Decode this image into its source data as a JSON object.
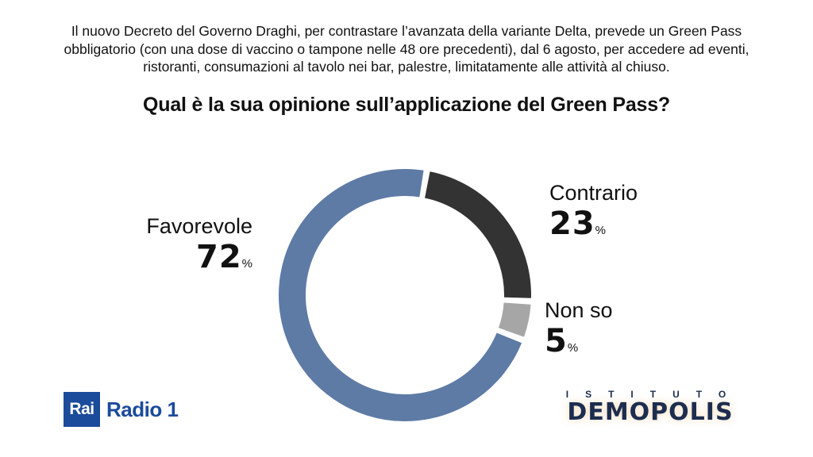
{
  "intro_lines": [
    "Il nuovo Decreto del Governo Draghi, per contrastare l’avanzata della variante Delta, prevede un Green Pass",
    "obbligatorio (con una dose di vaccino o tampone nelle 48 ore precedenti), dal 6 agosto, per accedere ad eventi,",
    "ristoranti, consumazioni al tavolo nei bar, palestre, limitatamente alle attività al chiuso."
  ],
  "question": "Qual è la sua opinione sull’applicazione del Green Pass?",
  "chart_data": {
    "type": "pie",
    "style": "donut",
    "title": "Qual è la sua opinione sull’applicazione del Green Pass?",
    "categories": [
      "Favorevole",
      "Contrario",
      "Non so"
    ],
    "values": [
      72,
      23,
      5
    ],
    "value_labels": [
      "72",
      "23",
      "5"
    ],
    "unit": "%",
    "colors": [
      "#5e7ba6",
      "#333333",
      "#a6a6a6"
    ],
    "legend": "labels beside slices"
  },
  "logos": {
    "rai_box": "Rai",
    "rai_radio": "Radio 1",
    "demopolis_top": "ISTITUTO",
    "demopolis_main": "DEMOPOLIS"
  },
  "colors": {
    "rai_blue": "#1b4b9b",
    "demopolis_navy": "#1c2d4f"
  }
}
